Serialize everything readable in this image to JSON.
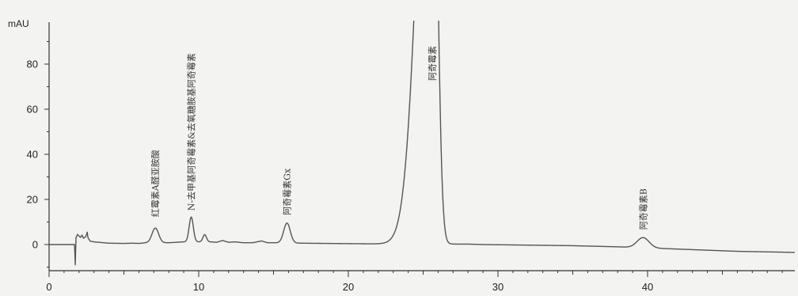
{
  "chart_data": {
    "type": "line",
    "title": "",
    "xlabel": "",
    "ylabel": "mAU",
    "xlim": [
      0,
      50
    ],
    "ylim": [
      -10,
      97
    ],
    "x_ticks": [
      0,
      10,
      20,
      30,
      40
    ],
    "y_ticks": [
      0,
      20,
      40,
      60,
      80
    ],
    "grid": false,
    "legend": "none",
    "trace_color": "#555555",
    "baseline_points": [
      [
        1.7,
        0
      ],
      [
        1.75,
        -9
      ],
      [
        1.8,
        3
      ],
      [
        1.9,
        4.5
      ],
      [
        2.0,
        3.8
      ],
      [
        2.1,
        3.2
      ],
      [
        2.2,
        4.2
      ],
      [
        2.3,
        2.8
      ],
      [
        2.45,
        3.5
      ],
      [
        2.55,
        5.5
      ],
      [
        2.6,
        3
      ],
      [
        2.75,
        1.5
      ],
      [
        3.0,
        1.2
      ],
      [
        4.0,
        0.6
      ],
      [
        5.0,
        0.5
      ],
      [
        5.6,
        0.6
      ],
      [
        6.0,
        0.5
      ],
      [
        6.5,
        0.8
      ],
      [
        8.0,
        0.8
      ],
      [
        8.5,
        1.0
      ],
      [
        9.0,
        1.2
      ],
      [
        10.8,
        1.2
      ],
      [
        11.2,
        1.0
      ],
      [
        11.6,
        1.8
      ],
      [
        12.0,
        1.0
      ],
      [
        12.4,
        1.2
      ],
      [
        13.0,
        0.8
      ],
      [
        13.6,
        0.8
      ],
      [
        14.2,
        1.6
      ],
      [
        14.6,
        0.8
      ],
      [
        15.0,
        0.8
      ],
      [
        17.0,
        0.6
      ],
      [
        20.0,
        0.4
      ],
      [
        22.0,
        0.3
      ],
      [
        28.0,
        0.2
      ],
      [
        29.0,
        0.0
      ],
      [
        35.0,
        -0.5
      ],
      [
        38.0,
        -1.0
      ],
      [
        42.0,
        -2.0
      ],
      [
        46.0,
        -3.0
      ],
      [
        50.0,
        -3.5
      ]
    ],
    "peaks": [
      {
        "label": "红霉素A醛亚胺酸",
        "rt": 7.1,
        "height": 6.5,
        "width": 0.22
      },
      {
        "label": "N-去甲基阿奇霉素&去氧糖胺基阿奇霉素",
        "rt": 9.5,
        "height": 11.0,
        "width": 0.14
      },
      {
        "label": "",
        "rt": 10.4,
        "height": 3.2,
        "width": 0.12
      },
      {
        "label": "阿奇霉素Gx",
        "rt": 15.9,
        "height": 8.8,
        "width": 0.22
      },
      {
        "label": "阿奇霉素",
        "rt": 25.6,
        "height": 250.0,
        "width_front": 0.9,
        "width_back": 0.32
      },
      {
        "label": "阿奇霉素B",
        "rt": 39.7,
        "height": 4.5,
        "width": 0.4
      }
    ]
  }
}
